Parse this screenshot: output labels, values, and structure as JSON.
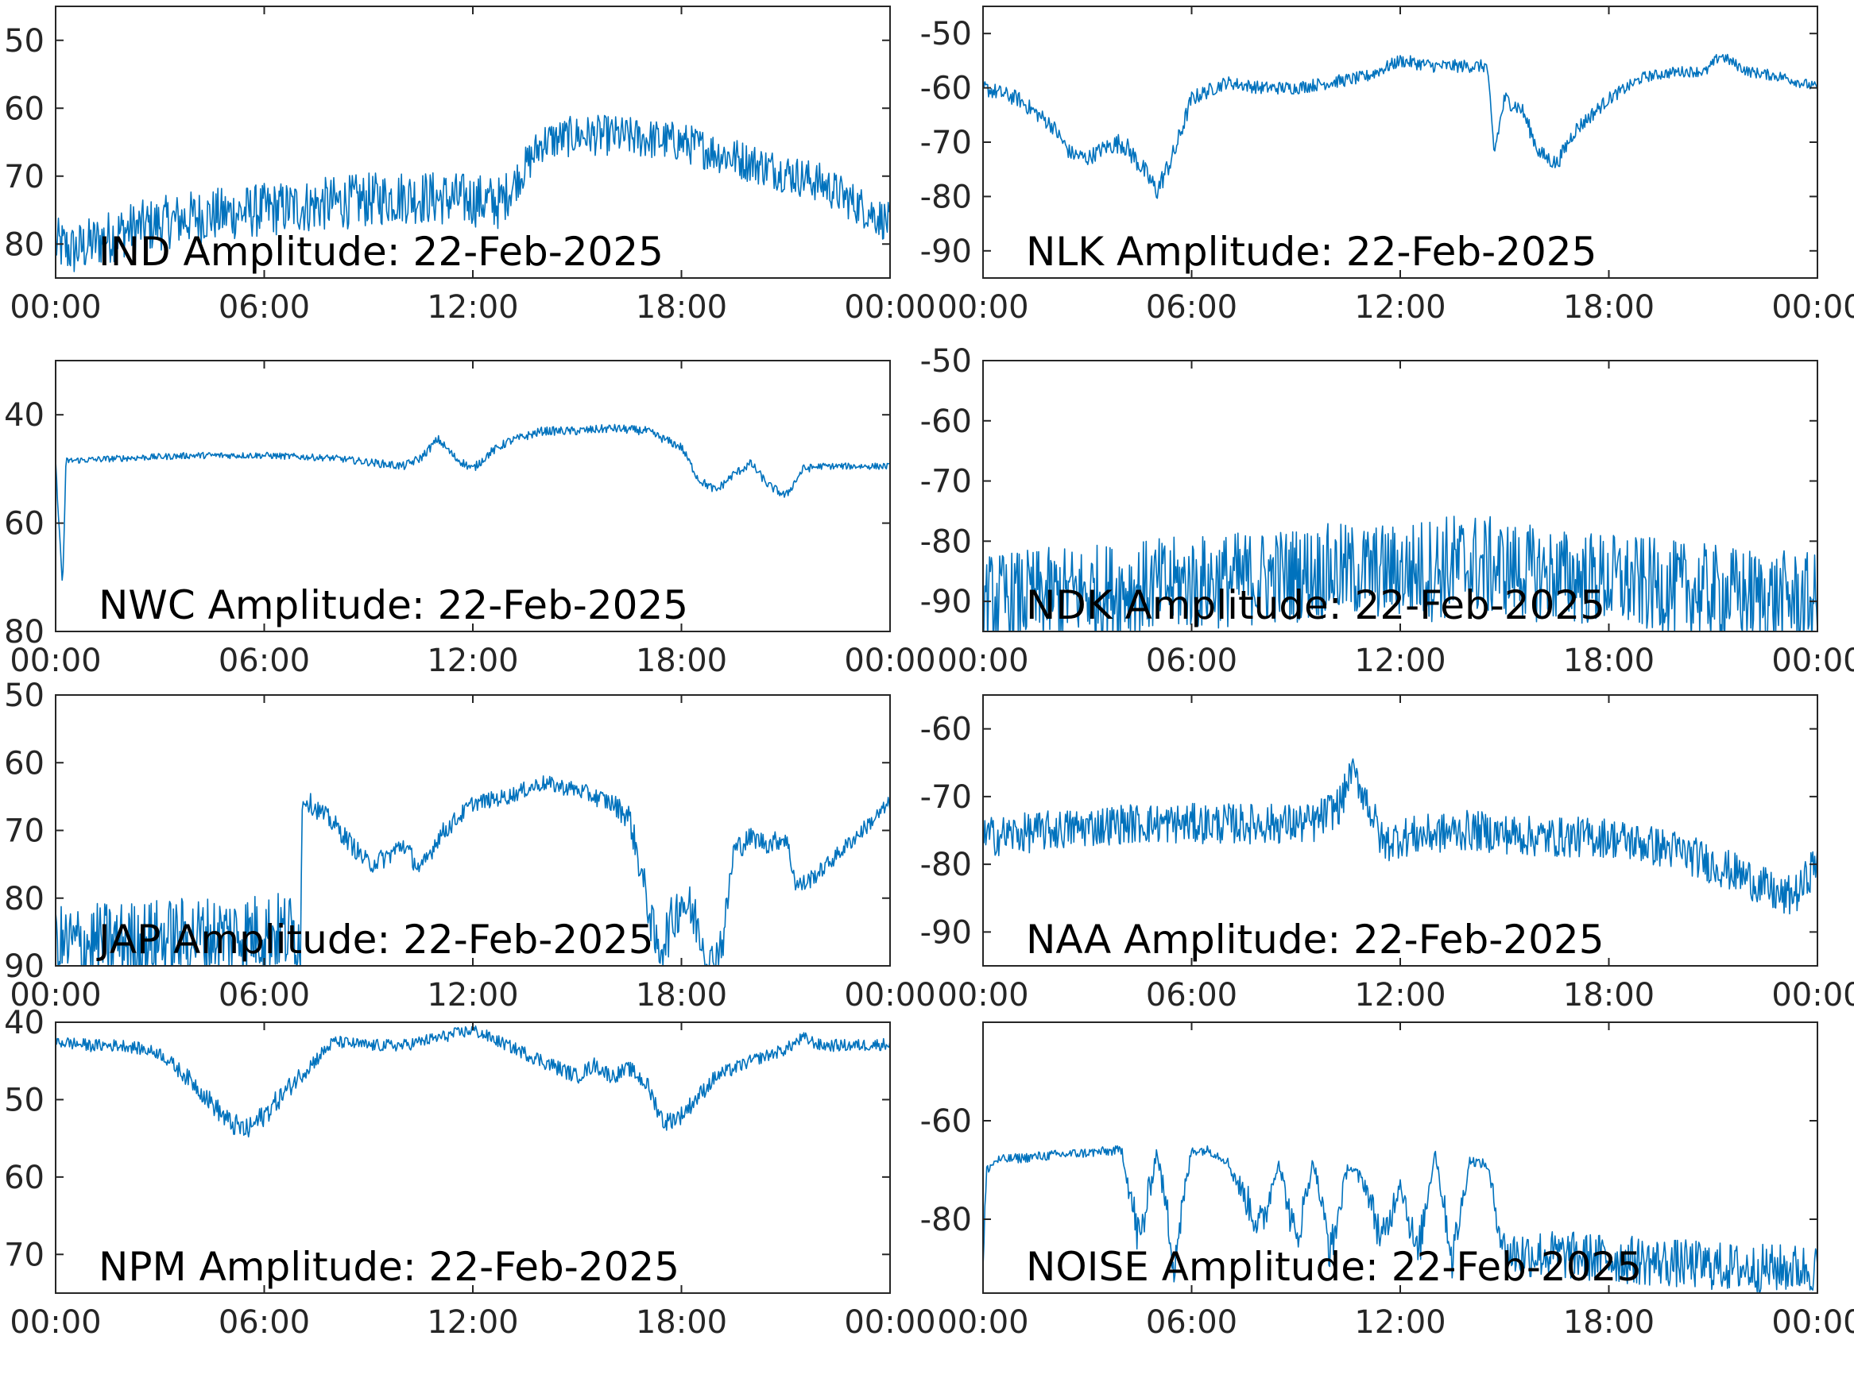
{
  "colors": {
    "trace": "#0072BD",
    "axes": "#262626",
    "background": "#ffffff"
  },
  "chart_data": [
    {
      "type": "line",
      "title": "IND Amplitude: 22-Feb-2025",
      "x_ticks": [
        "00:00",
        "06:00",
        "12:00",
        "18:00",
        "00:00"
      ],
      "y_ticks": [
        "50",
        "60",
        "70",
        "80"
      ],
      "ylim": [
        -85,
        -45
      ],
      "y_tick_values": [
        -50,
        -60,
        -70,
        -80
      ],
      "series": [
        {
          "x_hours": [
            0,
            0.5,
            1,
            2,
            3,
            4,
            6,
            8,
            10,
            12,
            12.8,
            13.2,
            14,
            15,
            16,
            18,
            20,
            22,
            23,
            24
          ],
          "y": [
            -80,
            -81,
            -80,
            -78,
            -77,
            -76,
            -75,
            -74,
            -73,
            -73.5,
            -74,
            -71,
            -65,
            -64,
            -64,
            -65,
            -68,
            -71,
            -74,
            -77
          ],
          "noise": [
            4,
            4,
            4,
            4,
            4,
            4,
            4,
            4,
            4,
            4,
            4,
            3,
            3,
            3,
            3,
            3,
            3,
            3,
            3,
            3
          ]
        }
      ]
    },
    {
      "type": "line",
      "title": "NLK Amplitude: 22-Feb-2025",
      "x_ticks": [
        "00:00",
        "06:00",
        "12:00",
        "18:00",
        "00:00"
      ],
      "y_ticks": [
        "-50",
        "-60",
        "-70",
        "-80",
        "-90"
      ],
      "ylim": [
        -95,
        -45
      ],
      "y_tick_values": [
        -50,
        -60,
        -70,
        -80,
        -90
      ],
      "series": [
        {
          "x_hours": [
            0,
            1,
            2,
            2.5,
            3,
            3.5,
            4,
            4.5,
            5,
            5.5,
            6,
            7,
            8,
            9,
            10,
            11,
            12,
            13,
            14,
            14.5,
            14.7,
            15,
            15.5,
            16,
            16.5,
            17,
            18,
            19,
            20,
            20.8,
            21.2,
            22,
            23,
            24
          ],
          "y": [
            -60,
            -62,
            -67,
            -72,
            -73,
            -71,
            -70,
            -74,
            -79,
            -72,
            -62,
            -59,
            -60,
            -60,
            -59,
            -58,
            -55,
            -56,
            -56,
            -56,
            -72,
            -62,
            -64,
            -72,
            -74,
            -68,
            -62,
            -58,
            -57,
            -57,
            -54,
            -57,
            -58,
            -60
          ],
          "noise": [
            1.5,
            1.5,
            1.5,
            1.5,
            1.5,
            1.5,
            2,
            2,
            2,
            2,
            1.5,
            1.2,
            1.2,
            1.2,
            1.2,
            1.2,
            1.2,
            1.2,
            1.2,
            1.2,
            1.5,
            1.5,
            1.5,
            1.5,
            1.5,
            1.5,
            1.2,
            1,
            1,
            1,
            1,
            1,
            1,
            1
          ]
        }
      ]
    },
    {
      "type": "line",
      "title": "NWC Amplitude: 22-Feb-2025",
      "x_ticks": [
        "00:00",
        "06:00",
        "12:00",
        "18:00",
        "00:00"
      ],
      "y_ticks": [
        "40",
        "60",
        "80"
      ],
      "ylim": [
        -80,
        -30
      ],
      "y_tick_values": [
        -40,
        -60,
        -80
      ],
      "series": [
        {
          "x_hours": [
            0,
            0.2,
            0.3,
            2,
            4,
            6,
            8,
            10,
            10.5,
            11,
            11.5,
            12,
            12.5,
            13,
            14,
            15,
            16,
            17,
            18,
            18.5,
            19,
            19.5,
            20,
            20.5,
            21,
            21.5,
            22,
            22.5,
            23,
            24
          ],
          "y": [
            -49,
            -72,
            -48.5,
            -48,
            -47.5,
            -47.5,
            -48,
            -49.5,
            -48,
            -44.5,
            -48,
            -50,
            -47,
            -45,
            -43,
            -43,
            -42.5,
            -43,
            -46,
            -52,
            -54,
            -51,
            -49,
            -53,
            -55,
            -50,
            -49.5,
            -49.5,
            -49.5,
            -49.5
          ],
          "noise": [
            0.6,
            0.6,
            0.6,
            0.6,
            0.6,
            0.6,
            0.6,
            0.8,
            0.8,
            0.8,
            0.8,
            0.8,
            0.8,
            0.8,
            0.8,
            0.8,
            0.8,
            0.8,
            0.8,
            0.8,
            0.8,
            0.8,
            0.8,
            0.8,
            0.8,
            0.8,
            0.6,
            0.6,
            0.6,
            0.6
          ]
        }
      ]
    },
    {
      "type": "line",
      "title": "NDK Amplitude: 22-Feb-2025",
      "x_ticks": [
        "00:00",
        "06:00",
        "12:00",
        "18:00",
        "00:00"
      ],
      "y_ticks": [
        "-50",
        "-60",
        "-70",
        "-80",
        "-90"
      ],
      "ylim": [
        -95,
        -50
      ],
      "y_tick_values": [
        -50,
        -60,
        -70,
        -80,
        -90
      ],
      "series": [
        {
          "x_hours": [
            0,
            2,
            4,
            6,
            8,
            10,
            12,
            13,
            14,
            15,
            16,
            18,
            20,
            22,
            24
          ],
          "y": [
            -90,
            -89,
            -88,
            -87,
            -86,
            -85,
            -85,
            -84.5,
            -84,
            -84.5,
            -85.5,
            -86.5,
            -88,
            -89,
            -90
          ],
          "noise": [
            8,
            8,
            8,
            8,
            8,
            8,
            8,
            9,
            9,
            8,
            8,
            8,
            8,
            8,
            8
          ]
        }
      ]
    },
    {
      "type": "line",
      "title": "JAP Amplitude: 22-Feb-2025",
      "x_ticks": [
        "00:00",
        "06:00",
        "12:00",
        "18:00",
        "00:00"
      ],
      "y_ticks": [
        "50",
        "60",
        "70",
        "80",
        "90"
      ],
      "ylim": [
        -90,
        -50
      ],
      "y_tick_values": [
        -50,
        -60,
        -70,
        -80,
        -90
      ],
      "series": [
        {
          "x_hours": [
            0,
            3,
            6,
            7.05,
            7.1,
            8,
            9,
            9.5,
            10,
            10.5,
            11,
            12,
            13,
            14,
            15,
            16,
            16.5,
            17,
            17.3,
            17.7,
            18,
            18.5,
            18.8,
            19.2,
            19.5,
            20,
            20.5,
            21,
            21.3,
            21.5,
            22,
            23,
            24
          ],
          "y": [
            -87,
            -86,
            -85,
            -85,
            -65,
            -69,
            -75,
            -74,
            -72,
            -76,
            -71,
            -66,
            -65,
            -63,
            -64,
            -66,
            -68,
            -80,
            -88,
            -84,
            -80,
            -84,
            -90,
            -86,
            -73,
            -71,
            -72,
            -71,
            -78,
            -78,
            -76,
            -71,
            -66
          ],
          "noise": [
            6,
            6,
            6,
            6,
            1.5,
            1.5,
            1.5,
            1.5,
            1.5,
            1.5,
            1.5,
            1.2,
            1.2,
            1.2,
            1.2,
            1.5,
            2,
            3,
            4,
            4,
            4,
            4,
            3,
            3,
            2,
            1.5,
            1.5,
            1.5,
            1.5,
            1.5,
            1.2,
            1.2,
            1.2
          ]
        }
      ]
    },
    {
      "type": "line",
      "title": "NAA Amplitude: 22-Feb-2025",
      "x_ticks": [
        "00:00",
        "06:00",
        "12:00",
        "18:00",
        "00:00"
      ],
      "y_ticks": [
        "-60",
        "-70",
        "-80",
        "-90"
      ],
      "ylim": [
        -95,
        -55
      ],
      "y_tick_values": [
        -60,
        -70,
        -80,
        -90
      ],
      "series": [
        {
          "x_hours": [
            0,
            2,
            4,
            6,
            8,
            9.5,
            10.3,
            10.6,
            11,
            11.5,
            12,
            14,
            16,
            18,
            19,
            20,
            21,
            22,
            23,
            23.5,
            24
          ],
          "y": [
            -76,
            -75,
            -74,
            -74,
            -74,
            -74,
            -71,
            -66,
            -70,
            -77,
            -76,
            -75,
            -76,
            -76,
            -77,
            -78,
            -80,
            -82,
            -85,
            -84,
            -79
          ],
          "noise": [
            3,
            3,
            3,
            3,
            3,
            3,
            3,
            2,
            3,
            3,
            3,
            3,
            3,
            3,
            3,
            3,
            3,
            3,
            3,
            3,
            3
          ]
        }
      ]
    },
    {
      "type": "line",
      "title": "NPM Amplitude: 22-Feb-2025",
      "x_ticks": [
        "00:00",
        "06:00",
        "12:00",
        "18:00",
        "00:00"
      ],
      "y_ticks": [
        "40",
        "50",
        "60",
        "70"
      ],
      "ylim": [
        -75,
        -40
      ],
      "y_tick_values": [
        -40,
        -50,
        -60,
        -70
      ],
      "series": [
        {
          "x_hours": [
            0,
            1,
            2,
            3,
            4,
            5,
            5.5,
            6,
            7,
            8,
            9,
            10,
            11,
            12,
            13,
            14,
            14.5,
            15,
            15.5,
            16,
            16.5,
            17,
            17.5,
            18,
            19,
            20,
            21,
            21.5,
            22,
            23,
            24
          ],
          "y": [
            -42.5,
            -43,
            -43,
            -44,
            -48,
            -53,
            -54,
            -52,
            -47,
            -42.5,
            -43,
            -43,
            -42,
            -41,
            -43,
            -45,
            -46,
            -47,
            -45.5,
            -47,
            -46,
            -48,
            -53,
            -52,
            -47,
            -45,
            -43.5,
            -42,
            -43,
            -43,
            -42.8
          ],
          "noise": [
            0.8,
            0.8,
            0.8,
            0.8,
            1.2,
            1.5,
            1.5,
            1.5,
            1.2,
            0.8,
            0.8,
            0.8,
            0.8,
            0.8,
            0.8,
            1,
            1,
            1,
            1,
            1,
            1,
            1.2,
            1.2,
            1.2,
            1,
            0.8,
            0.8,
            0.8,
            0.8,
            0.8,
            0.8
          ]
        }
      ]
    },
    {
      "type": "line",
      "title": "NOISE Amplitude: 22-Feb-2025",
      "x_ticks": [
        "00:00",
        "06:00",
        "12:00",
        "18:00",
        "00:00"
      ],
      "y_ticks": [
        "-60",
        "-80"
      ],
      "ylim": [
        -95,
        -40
      ],
      "y_tick_values": [
        -60,
        -80
      ],
      "series": [
        {
          "x_hours": [
            0,
            0.1,
            0.4,
            2,
            4,
            4.5,
            5,
            5.5,
            6,
            6.5,
            7,
            8,
            8.5,
            9,
            9.5,
            10,
            10.5,
            11,
            11.5,
            12,
            12.5,
            13,
            13.5,
            14,
            14.5,
            15,
            16,
            18,
            20,
            22,
            24
          ],
          "y": [
            -90,
            -70,
            -68,
            -67,
            -66,
            -85,
            -66,
            -88,
            -66,
            -66,
            -68,
            -82,
            -68,
            -85,
            -68,
            -87,
            -69,
            -73,
            -85,
            -72,
            -88,
            -66,
            -88,
            -68,
            -69,
            -87,
            -87,
            -88,
            -89,
            -90,
            -90
          ],
          "noise": [
            4,
            1,
            1,
            1,
            1,
            6,
            1,
            6,
            1,
            1,
            1,
            5,
            1,
            5,
            1,
            5,
            1,
            2,
            5,
            2,
            5,
            1,
            5,
            1,
            1,
            5,
            5,
            5,
            5,
            5,
            5
          ]
        }
      ]
    }
  ]
}
